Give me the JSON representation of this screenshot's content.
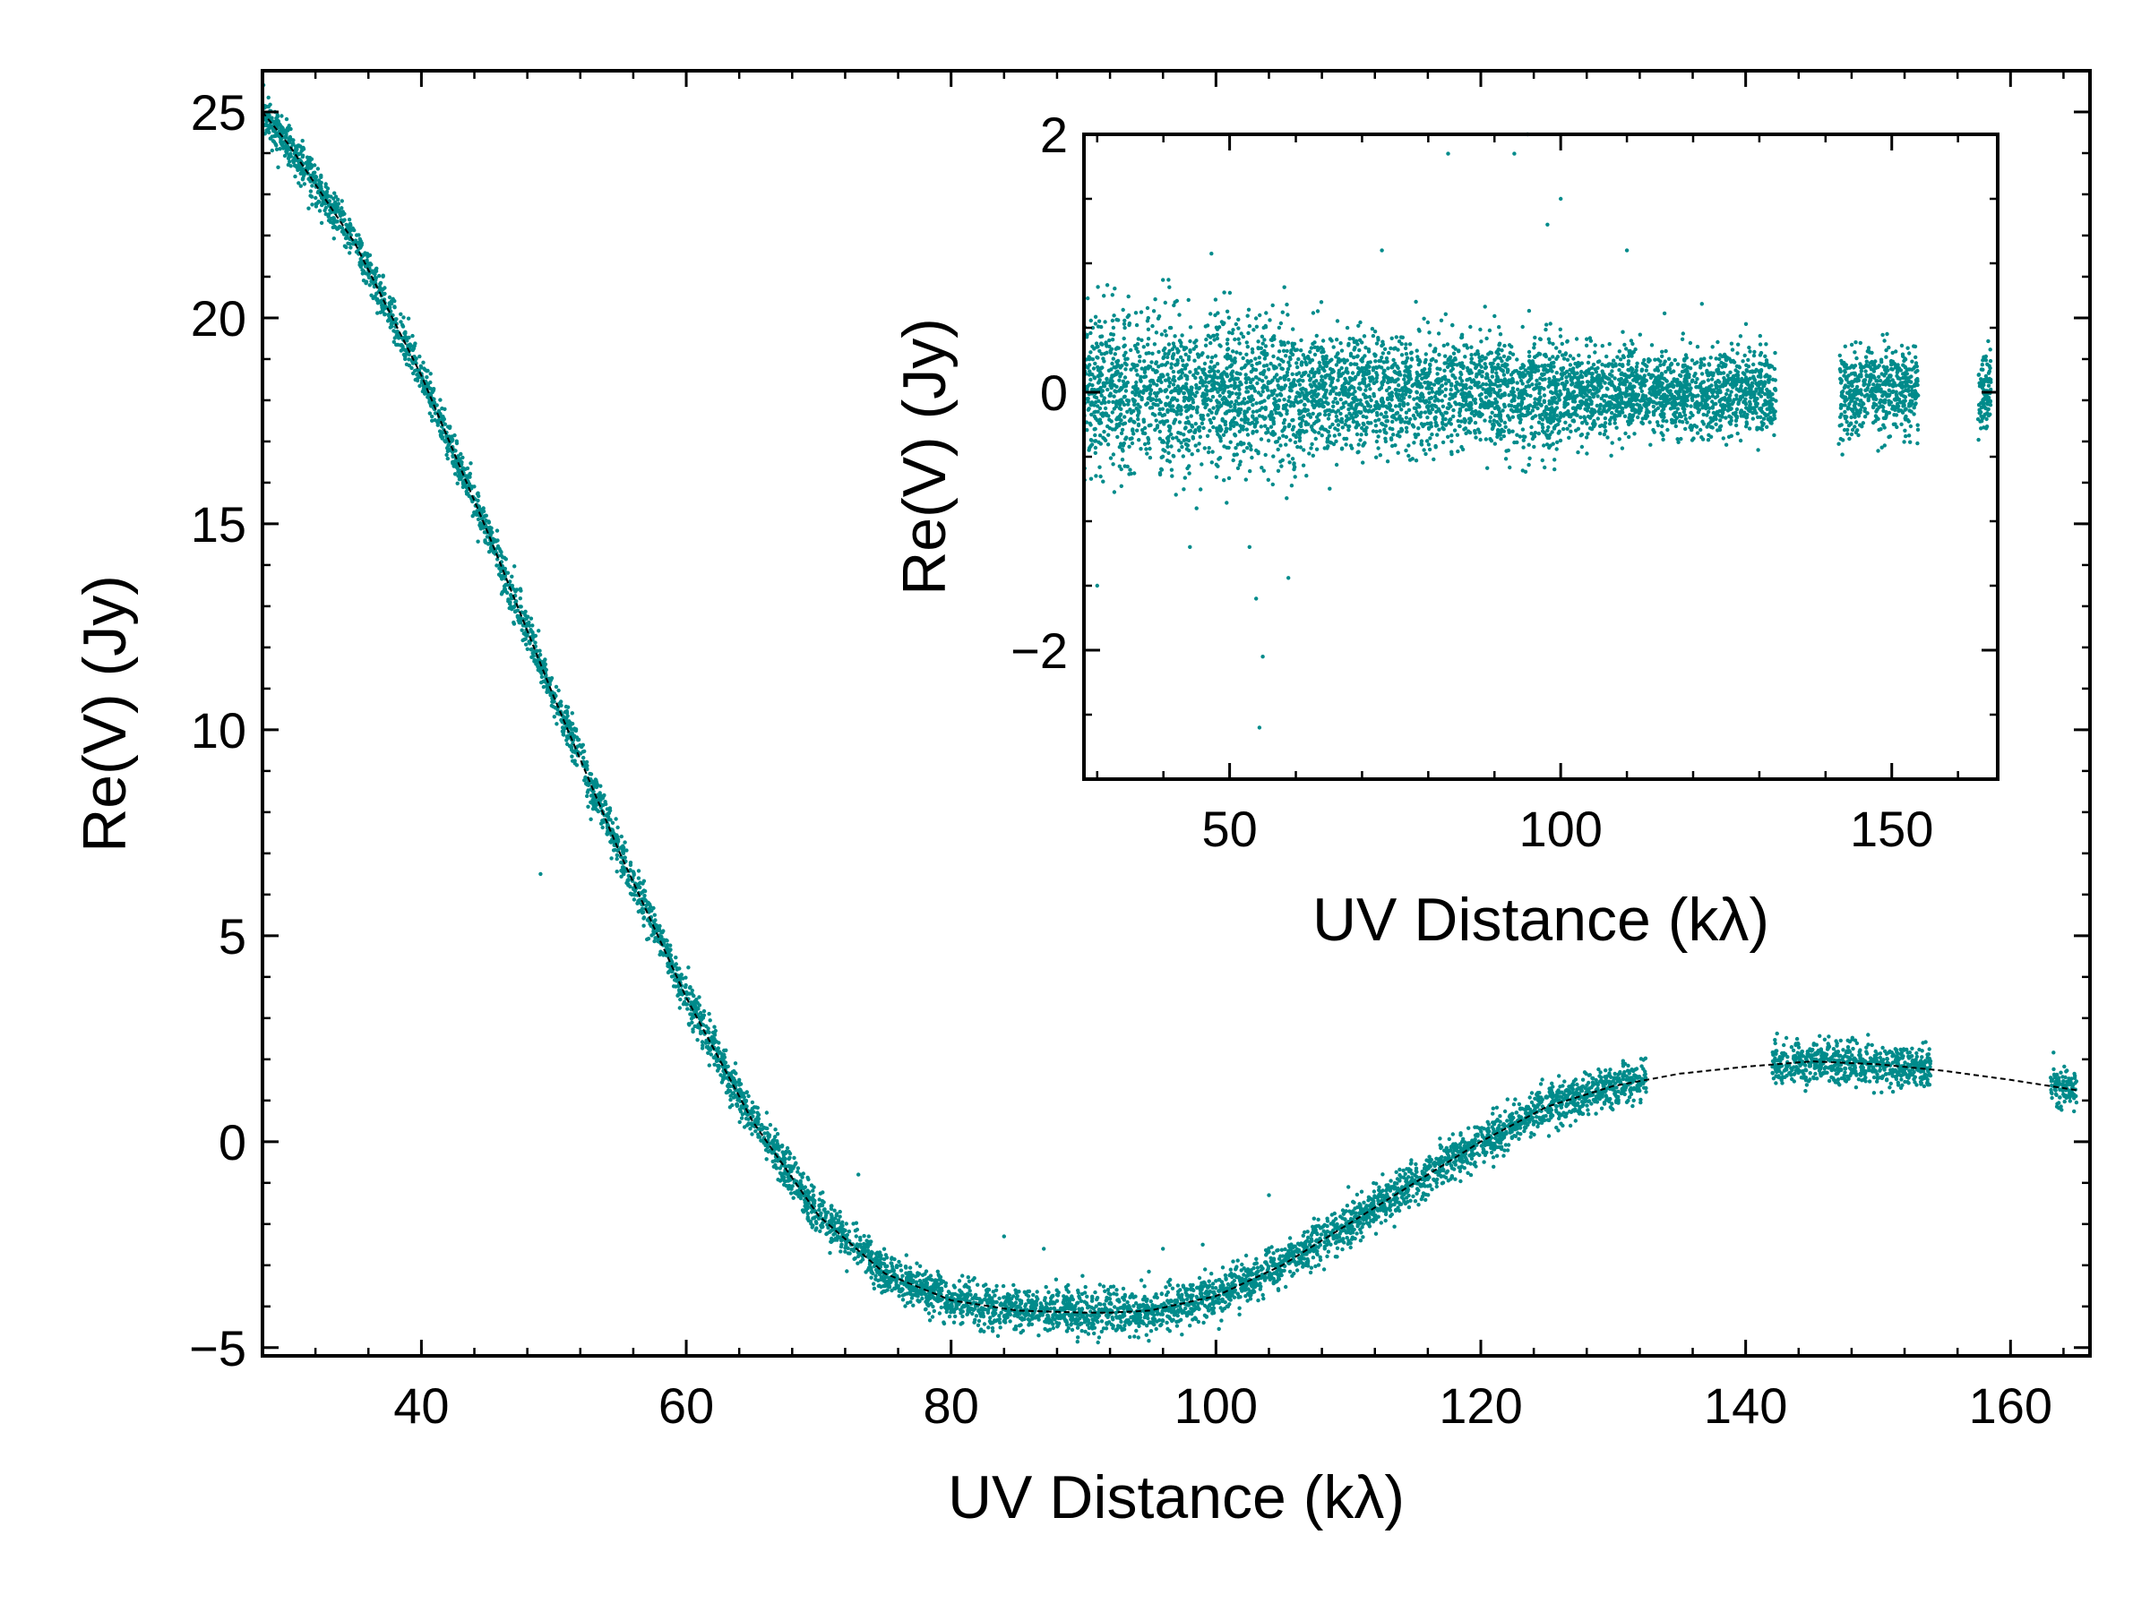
{
  "chart_data": [
    {
      "type": "scatter",
      "panel": "main",
      "xlabel": "UV Distance (kλ)",
      "ylabel": "Re(V) (Jy)",
      "xlim": [
        28,
        166
      ],
      "ylim": [
        -5.2,
        26
      ],
      "xticks": [
        40,
        60,
        80,
        100,
        120,
        140,
        160
      ],
      "yticks": [
        -5,
        0,
        5,
        10,
        15,
        20,
        25
      ],
      "xtick_labels": [
        "40",
        "60",
        "80",
        "100",
        "120",
        "140",
        "160"
      ],
      "ytick_labels": [
        "−5",
        "0",
        "5",
        "10",
        "15",
        "20",
        "25"
      ],
      "grid": false,
      "legend": "none",
      "series": [
        {
          "kind": "scatter",
          "color": "#008b8b",
          "x_ranges": [
            [
              28,
              132.5
            ],
            [
              142,
              154
            ],
            [
              163,
              165
            ]
          ],
          "noise_jy": 0.25
        },
        {
          "kind": "line",
          "style": "dashed",
          "color": "#000000",
          "x": [
            28,
            30,
            35,
            40,
            45,
            50,
            55,
            60,
            65,
            70,
            75,
            80,
            85,
            90,
            92,
            95,
            100,
            105,
            110,
            115,
            120,
            125,
            130,
            135,
            140,
            145,
            150,
            155,
            160,
            165
          ],
          "y": [
            25.0,
            24.2,
            21.8,
            18.6,
            14.8,
            10.8,
            7.0,
            3.5,
            0.5,
            -1.8,
            -3.2,
            -3.85,
            -4.1,
            -4.15,
            -4.15,
            -4.1,
            -3.75,
            -3.0,
            -2.0,
            -1.0,
            0.0,
            0.85,
            1.35,
            1.65,
            1.82,
            1.95,
            1.88,
            1.72,
            1.5,
            1.25
          ]
        }
      ]
    },
    {
      "type": "scatter",
      "panel": "inset",
      "xlabel": "UV Distance (kλ)",
      "ylabel": "Re(V) (Jy)",
      "xlim": [
        28,
        166
      ],
      "ylim": [
        -3,
        2
      ],
      "xticks": [
        50,
        100,
        150
      ],
      "yticks": [
        -2,
        0,
        2
      ],
      "xtick_labels": [
        "50",
        "100",
        "150"
      ],
      "ytick_labels": [
        "−2",
        "0",
        "2"
      ],
      "grid": false,
      "legend": "none",
      "series": [
        {
          "kind": "scatter",
          "name_hidden": true,
          "color": "#008b8b",
          "x_ranges": [
            [
              28,
              132.5
            ],
            [
              142,
              154
            ],
            [
              163,
              165
            ]
          ],
          "noise_jy": 0.2,
          "outliers": [
            [
              30,
              -1.5
            ],
            [
              44,
              -1.2
            ],
            [
              45,
              -0.9
            ],
            [
              53,
              -1.2
            ],
            [
              54,
              -1.6
            ],
            [
              55,
              -2.05
            ],
            [
              54.5,
              -2.6
            ],
            [
              73,
              1.1
            ],
            [
              83,
              1.85
            ],
            [
              93,
              1.85
            ],
            [
              95,
              2.0
            ],
            [
              98,
              1.3
            ],
            [
              100,
              1.5
            ],
            [
              110,
              1.1
            ]
          ]
        }
      ]
    }
  ]
}
